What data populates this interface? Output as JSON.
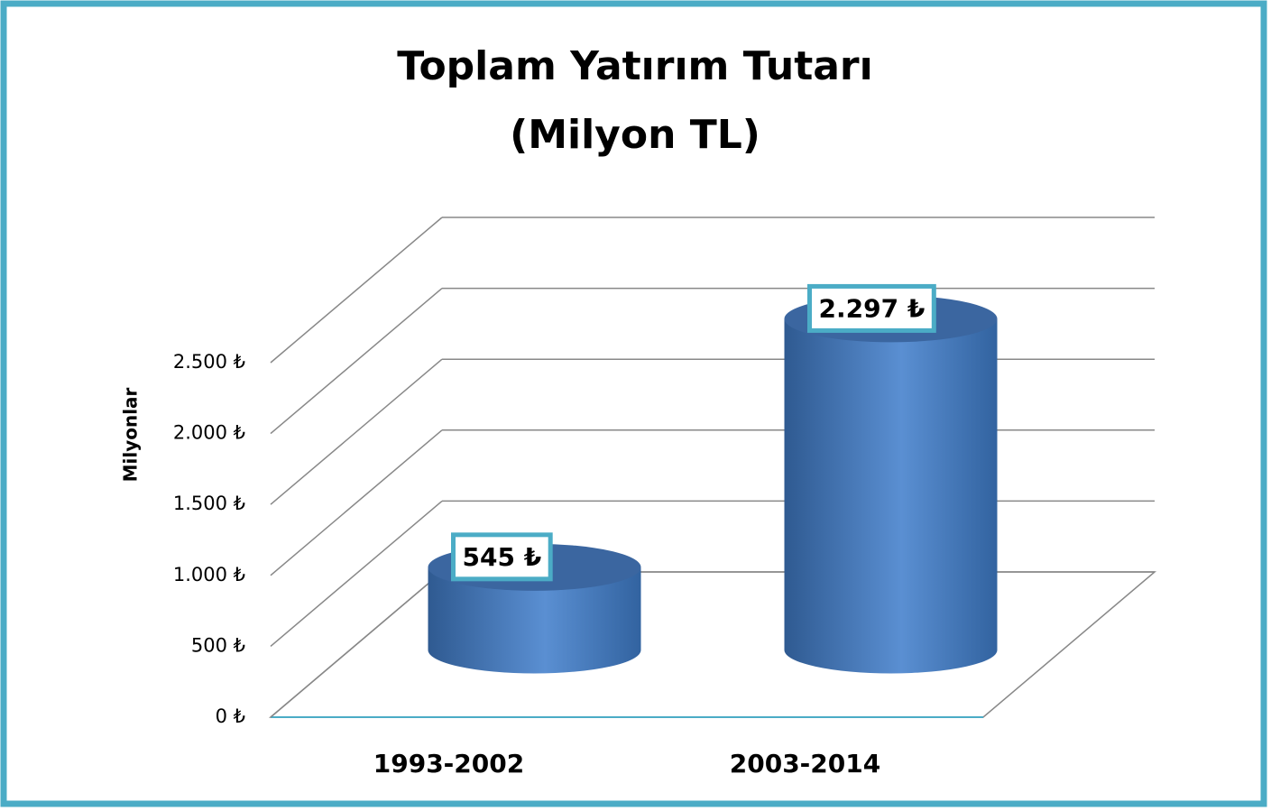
{
  "chart_data": {
    "type": "bar3d",
    "title": "Toplam Yatırım Tutarı",
    "subtitle": "(Milyon TL)",
    "y_label": "Milyonlar",
    "categories": [
      "1993-2002",
      "2003-2014"
    ],
    "values": [
      545,
      2297
    ],
    "value_labels": [
      "545 ₺",
      "2.297 ₺"
    ],
    "color": "#4f81bd",
    "ylim": [
      0,
      2500
    ],
    "yticks": [
      {
        "value": 0,
        "label": "0 ₺"
      },
      {
        "value": 500,
        "label": "500 ₺"
      },
      {
        "value": 1000,
        "label": "1.000 ₺"
      },
      {
        "value": 1500,
        "label": "1.500 ₺"
      },
      {
        "value": 2000,
        "label": "2.000 ₺"
      },
      {
        "value": 2500,
        "label": "2.500 ₺"
      }
    ],
    "grid": true
  }
}
